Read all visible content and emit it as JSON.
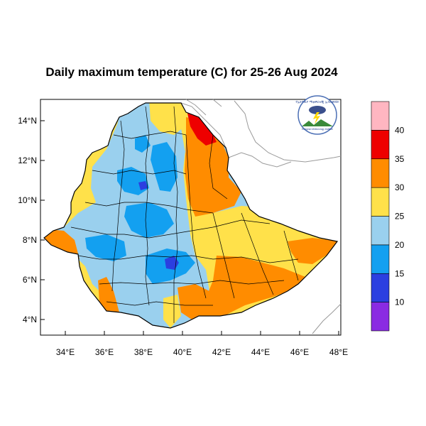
{
  "title": "Daily maximum temperature (C) for 25-26 Aug 2024",
  "x_ticks": [
    "34°E",
    "36°E",
    "38°E",
    "40°E",
    "42°E",
    "44°E",
    "46°E",
    "48°E"
  ],
  "y_ticks": [
    "14°N",
    "12°N",
    "10°N",
    "8°N",
    "6°N",
    "4°N"
  ],
  "colorbar": {
    "labels": [
      "10",
      "15",
      "20",
      "25",
      "30",
      "35",
      "40"
    ],
    "colors": [
      "#8a2be2",
      "#2b3fe0",
      "#13a0f0",
      "#9ad0ee",
      "#ffe14a",
      "#ff8c00",
      "#ee0000",
      "#ffb6c1"
    ]
  },
  "logo": {
    "text_top": "የኢትዮጵያ ሚቲዎሮሎጂ ኢንስቲትዩት",
    "text_bottom": "Ethiopian Meteorology Institute"
  },
  "field_colors": {
    "hot": "#ff8c00",
    "warm": "#ffe14a",
    "mild": "#9ad0ee",
    "cool": "#13a0f0",
    "cold": "#2b3fe0",
    "veryhot": "#ee0000"
  }
}
